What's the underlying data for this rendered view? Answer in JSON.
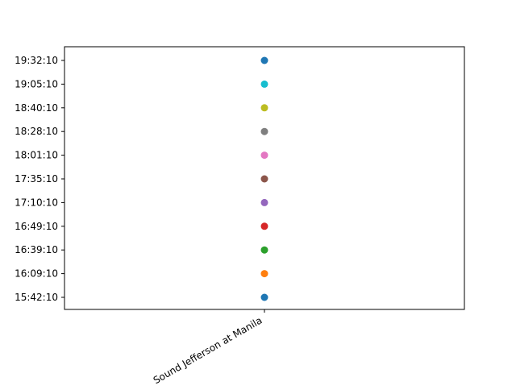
{
  "chart_data": {
    "type": "scatter",
    "title": "",
    "xlabel": "",
    "ylabel": "",
    "categories": [
      "Sound Jefferson at Manila"
    ],
    "y_ticks": [
      "15:42:10",
      "16:09:10",
      "16:39:10",
      "16:49:10",
      "17:10:10",
      "17:35:10",
      "18:01:10",
      "18:28:10",
      "18:40:10",
      "19:05:10",
      "19:32:10"
    ],
    "points": [
      {
        "x": "Sound Jefferson at Manila",
        "y": "15:42:10",
        "color": "#1f77b4"
      },
      {
        "x": "Sound Jefferson at Manila",
        "y": "16:09:10",
        "color": "#ff7f0e"
      },
      {
        "x": "Sound Jefferson at Manila",
        "y": "16:39:10",
        "color": "#2ca02c"
      },
      {
        "x": "Sound Jefferson at Manila",
        "y": "16:49:10",
        "color": "#d62728"
      },
      {
        "x": "Sound Jefferson at Manila",
        "y": "17:10:10",
        "color": "#9467bd"
      },
      {
        "x": "Sound Jefferson at Manila",
        "y": "17:35:10",
        "color": "#8c564b"
      },
      {
        "x": "Sound Jefferson at Manila",
        "y": "18:01:10",
        "color": "#e377c2"
      },
      {
        "x": "Sound Jefferson at Manila",
        "y": "18:28:10",
        "color": "#7f7f7f"
      },
      {
        "x": "Sound Jefferson at Manila",
        "y": "18:40:10",
        "color": "#bcbd22"
      },
      {
        "x": "Sound Jefferson at Manila",
        "y": "19:05:10",
        "color": "#17becf"
      },
      {
        "x": "Sound Jefferson at Manila",
        "y": "19:32:10",
        "color": "#1f77b4"
      }
    ],
    "grid": false,
    "legend": "none"
  }
}
